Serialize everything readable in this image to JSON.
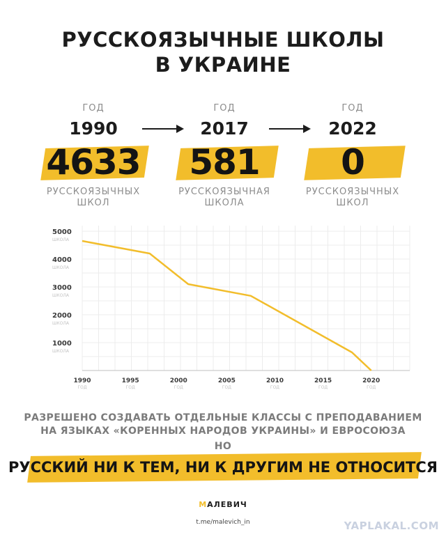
{
  "title": {
    "line1": "РУССКОЯЗЫЧНЫЕ ШКОЛЫ",
    "line2": "В УКРАИНЕ"
  },
  "stats": [
    {
      "label": "ГОД",
      "year": "1990",
      "value": "4633",
      "sub1": "РУССКОЯЗЫЧНЫХ",
      "sub2": "ШКОЛ"
    },
    {
      "label": "ГОД",
      "year": "2017",
      "value": "581",
      "sub1": "РУССКОЯЗЫЧНАЯ",
      "sub2": "ШКОЛА"
    },
    {
      "label": "ГОД",
      "year": "2022",
      "value": "0",
      "sub1": "РУССКОЯЗЫЧНЫХ",
      "sub2": "ШКОЛ"
    }
  ],
  "colors": {
    "accent": "#f2bd2b",
    "text": "#1c1c1c",
    "muted": "#8c8c8c"
  },
  "chart_data": {
    "type": "line",
    "x": [
      1990,
      1997,
      2001,
      2007.5,
      2018,
      2020
    ],
    "y": [
      4650,
      4200,
      3100,
      2680,
      650,
      0
    ],
    "xticks": [
      1990,
      1995,
      2000,
      2005,
      2010,
      2015,
      2020
    ],
    "xtick_unit": "ГОД",
    "yticks": [
      1000,
      2000,
      3000,
      4000,
      5000
    ],
    "ytick_unit": "ШКОЛА",
    "xlim": [
      1990,
      2024
    ],
    "ylim": [
      0,
      5000
    ],
    "grid": true,
    "color": "#f2bd2b"
  },
  "note": {
    "line1": "РАЗРЕШЕНО СОЗДАВАТЬ ОТДЕЛЬНЫЕ КЛАССЫ С ПРЕПОДАВАНИЕМ",
    "line2": "НА ЯЗЫКАХ «КОРЕННЫХ НАРОДОВ УКРАИНЫ» И ЕВРОСОЮЗА",
    "but": "НО"
  },
  "banner": "РУССКИЙ НИ К ТЕМ, НИ К ДРУГИМ НЕ ОТНОСИТСЯ",
  "footer": {
    "brand_mark": "М",
    "brand_rest": "АЛЕВИЧ",
    "link": "t.me/malevich_in"
  },
  "watermark": "YAPLAKAL.COM"
}
